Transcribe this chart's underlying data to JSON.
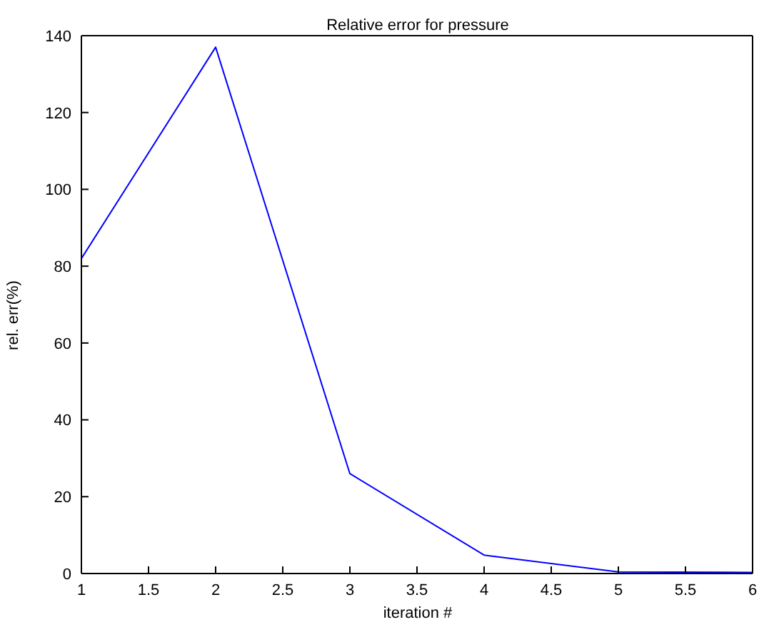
{
  "chart_data": {
    "type": "line",
    "title": "Relative error for pressure",
    "xlabel": "iteration #",
    "ylabel": "rel. err(%)",
    "x": [
      1,
      2,
      3,
      4,
      5,
      6
    ],
    "series": [
      {
        "color": "#0000ff",
        "values": [
          82,
          137,
          26,
          4.8,
          0.4,
          0.3
        ]
      }
    ],
    "xlim": [
      1,
      6
    ],
    "xticks": [
      1,
      1.5,
      2,
      2.5,
      3,
      3.5,
      4,
      4.5,
      5,
      5.5,
      6
    ],
    "ylim": [
      0,
      140
    ],
    "yticks": [
      0,
      20,
      40,
      60,
      80,
      100,
      120,
      140
    ],
    "grid": false,
    "legend": false,
    "marker": "none",
    "line_style": "solid"
  }
}
